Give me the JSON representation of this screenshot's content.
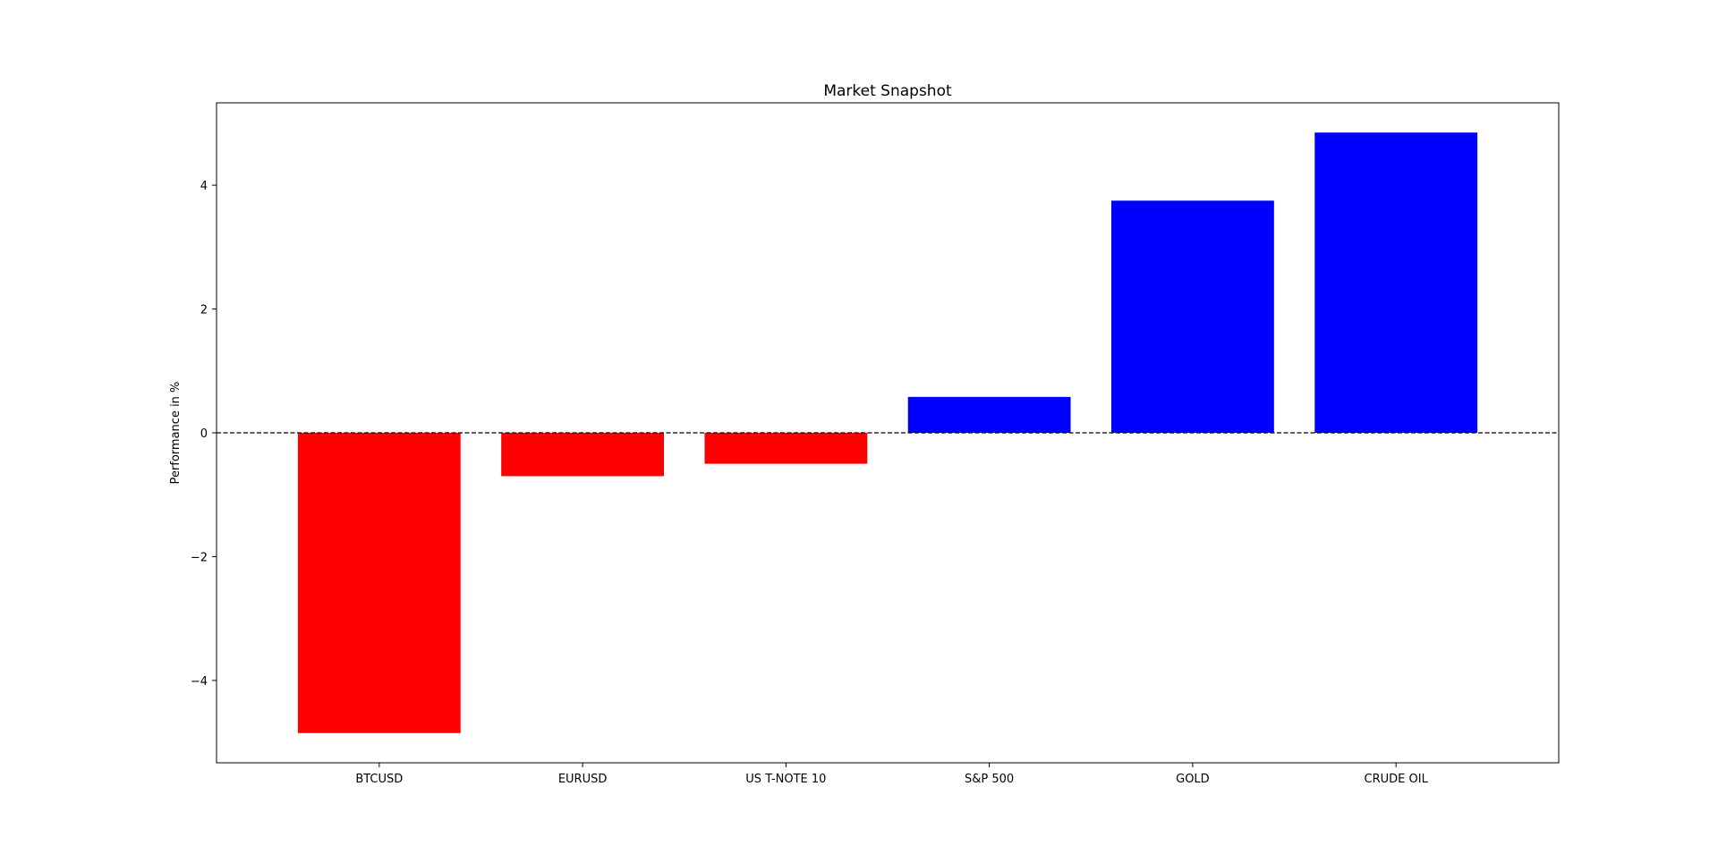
{
  "chart_data": {
    "type": "bar",
    "title": "Market Snapshot",
    "xlabel": "",
    "ylabel": "Performance in %",
    "categories": [
      "BTCUSD",
      "EURUSD",
      "US T-NOTE 10",
      "S&P 500",
      "GOLD",
      "CRUDE OIL"
    ],
    "values": [
      -4.85,
      -0.7,
      -0.5,
      0.58,
      3.75,
      4.85
    ],
    "colors": [
      "#ff0000",
      "#ff0000",
      "#ff0000",
      "#0000ff",
      "#0000ff",
      "#0000ff"
    ],
    "ylim": [
      -5.33,
      5.33
    ],
    "yticks": [
      -4,
      -2,
      0,
      2,
      4
    ],
    "ytick_labels": [
      "−4",
      "−2",
      "0",
      "2",
      "4"
    ],
    "reference_line": {
      "y": 0,
      "style": "dashed",
      "color": "#000000"
    },
    "grid": false
  }
}
